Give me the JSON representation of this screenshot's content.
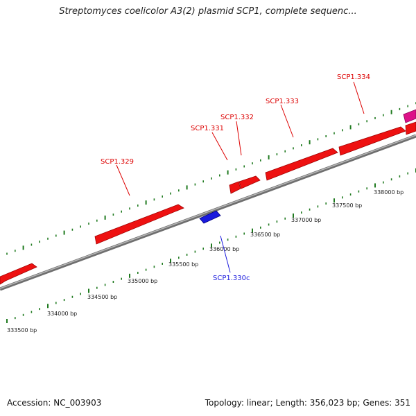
{
  "title": "Streptomyces coelicolor A3(2) plasmid SCP1, complete sequenc...",
  "accession_text": "Accession: NC_003903",
  "summary_text": "Topology: linear; Length: 356,023 bp; Genes: 351",
  "colors": {
    "forward_gene": "#ee1111",
    "reverse_gene": "#1a1add",
    "highlight_gene": "#dd1188",
    "tick": "#1f7a1f",
    "backbone": "#8a8a8a"
  },
  "scale_labels": [
    "333500 bp",
    "334000 bp",
    "334500 bp",
    "335000 bp",
    "335500 bp",
    "336000 bp",
    "336500 bp",
    "337000 bp",
    "337500 bp",
    "338000 bp"
  ],
  "gene_labels": [
    {
      "text": "SCP1.329",
      "strand": "forward"
    },
    {
      "text": "SCP1.331",
      "strand": "forward"
    },
    {
      "text": "SCP1.332",
      "strand": "forward"
    },
    {
      "text": "SCP1.333",
      "strand": "forward"
    },
    {
      "text": "SCP1.334",
      "strand": "forward"
    },
    {
      "text": "SCP1.330c",
      "strand": "reverse"
    }
  ]
}
